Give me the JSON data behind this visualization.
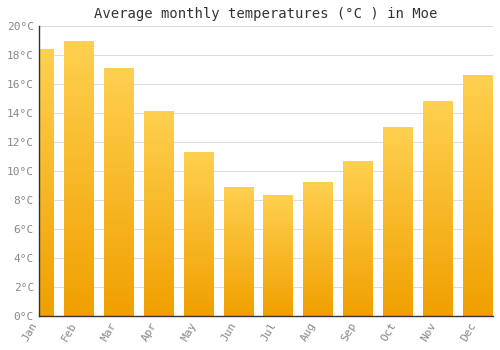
{
  "title": "Average monthly temperatures (°C ) in Moe",
  "months": [
    "Jan",
    "Feb",
    "Mar",
    "Apr",
    "May",
    "Jun",
    "Jul",
    "Aug",
    "Sep",
    "Oct",
    "Nov",
    "Dec"
  ],
  "values": [
    18.4,
    19.0,
    17.1,
    14.1,
    11.3,
    8.9,
    8.3,
    9.2,
    10.7,
    13.0,
    14.8,
    16.6
  ],
  "bar_color_top": "#FFD050",
  "bar_color_bottom": "#F0A000",
  "ylim": [
    0,
    20
  ],
  "yticks": [
    0,
    2,
    4,
    6,
    8,
    10,
    12,
    14,
    16,
    18,
    20
  ],
  "ytick_labels": [
    "0°C",
    "2°C",
    "4°C",
    "6°C",
    "8°C",
    "10°C",
    "12°C",
    "14°C",
    "16°C",
    "18°C",
    "20°C"
  ],
  "bg_color": "#ffffff",
  "grid_color": "#dddddd",
  "title_fontsize": 10,
  "tick_fontsize": 8,
  "font_family": "monospace"
}
